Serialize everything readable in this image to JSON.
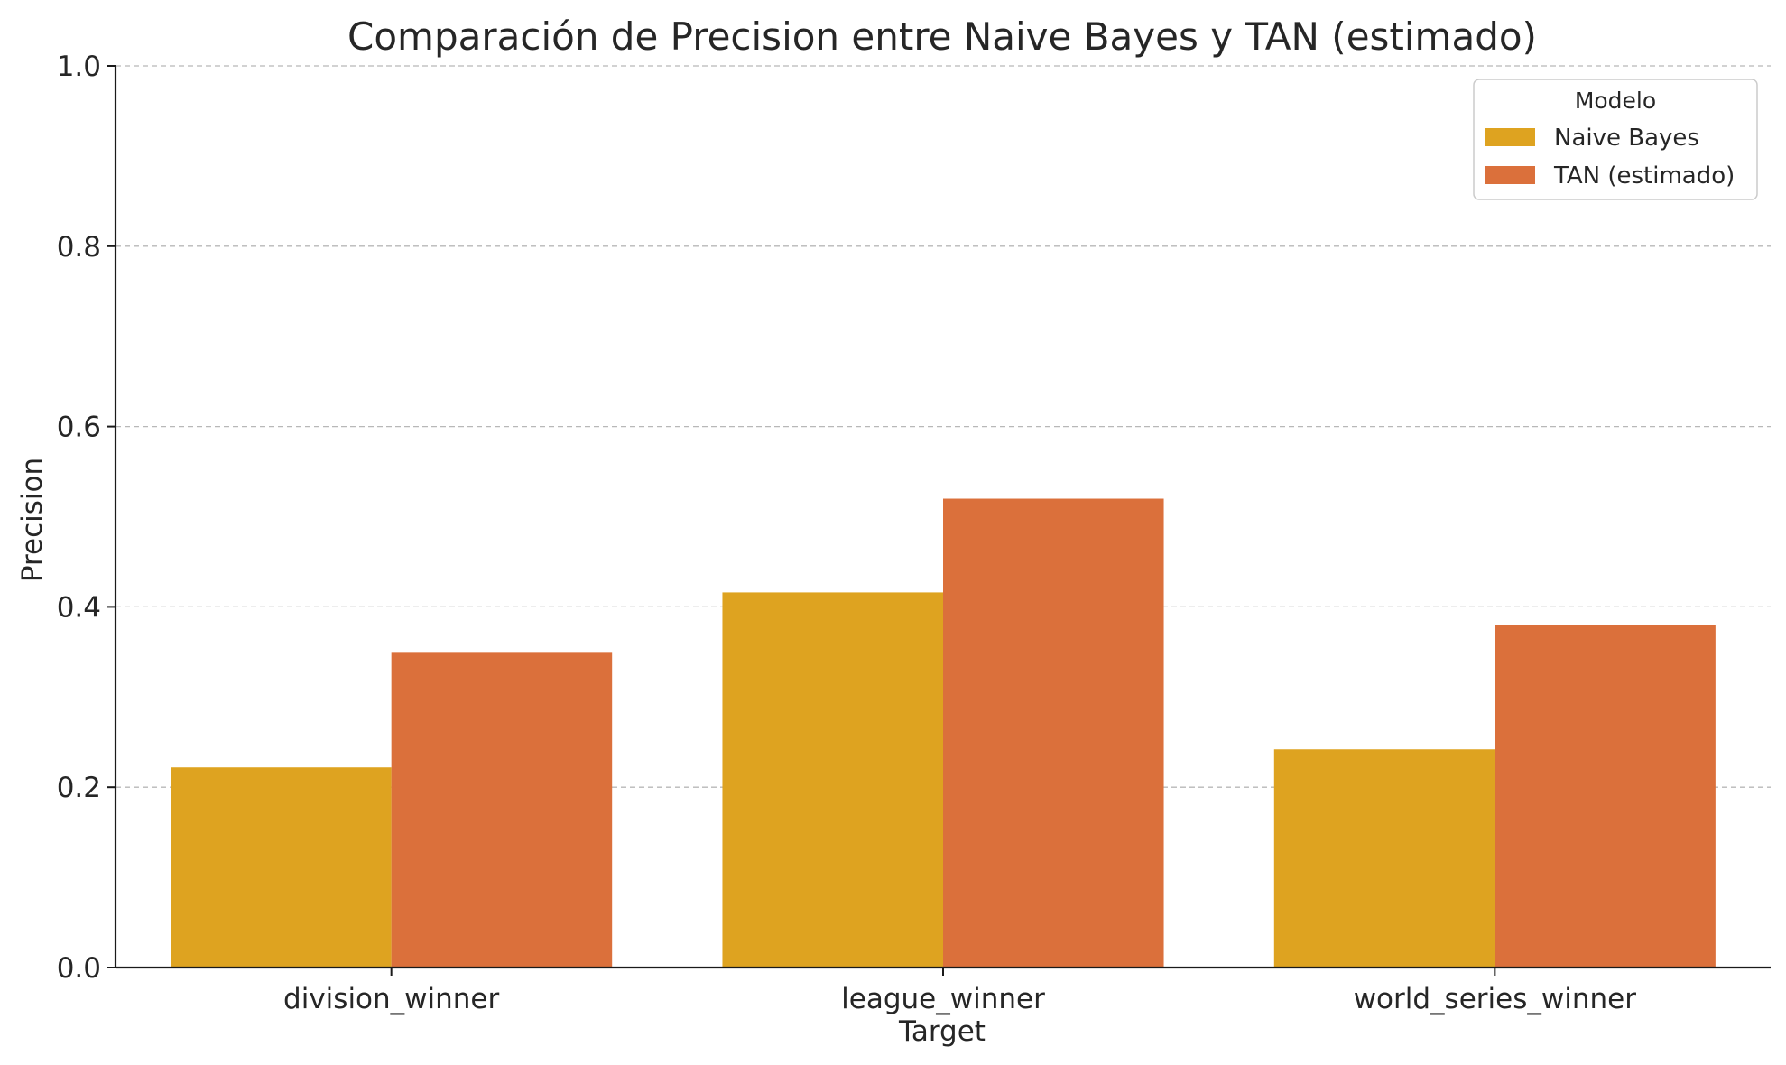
{
  "chart_data": {
    "type": "bar",
    "title": "Comparación de Precision entre Naive Bayes y TAN (estimado)",
    "xlabel": "Target",
    "ylabel": "Precision",
    "categories": [
      "division_winner",
      "league_winner",
      "world_series_winner"
    ],
    "series": [
      {
        "name": "Naive Bayes",
        "color": "#dea320",
        "values": [
          0.222,
          0.416,
          0.242
        ]
      },
      {
        "name": "TAN (estimado)",
        "color": "#db703b",
        "values": [
          0.35,
          0.52,
          0.38
        ]
      }
    ],
    "ylim": [
      0,
      1.0
    ],
    "yticks": [
      "0.0",
      "0.2",
      "0.4",
      "0.6",
      "0.8",
      "1.0"
    ],
    "grid": "y-dashed",
    "legend": {
      "title": "Modelo",
      "placement": "top-right"
    }
  }
}
